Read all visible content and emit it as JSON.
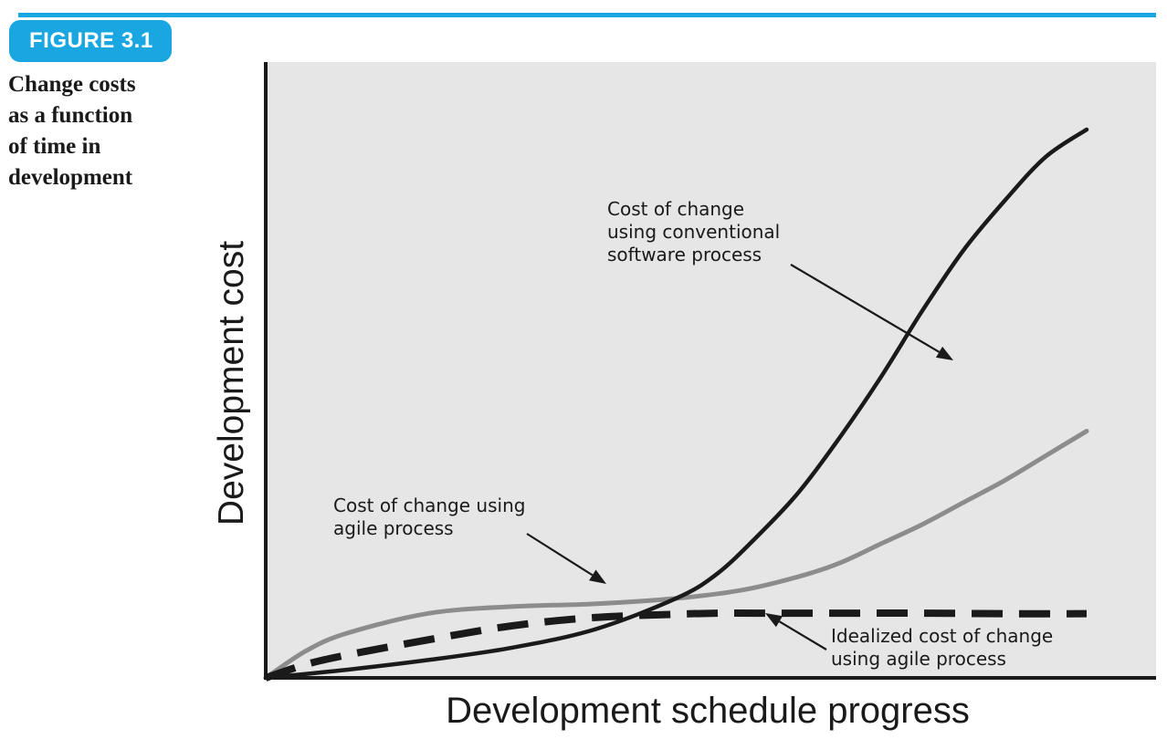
{
  "figure": {
    "label": "FIGURE 3.1",
    "caption_lines": [
      "Change costs",
      "as a function",
      "of time in",
      "development"
    ]
  },
  "colors": {
    "accent": "#1aa7e1",
    "plot_background": "#e6e6e6",
    "conventional": "#1a1a1a",
    "agile": "#8c8c8c",
    "idealized": "#1a1a1a"
  },
  "chart_data": {
    "type": "line",
    "xlabel": "Development schedule progress",
    "ylabel": "Development cost",
    "xlim": [
      0,
      100
    ],
    "ylim": [
      0,
      100
    ],
    "grid": false,
    "series": [
      {
        "name": "Cost of change using conventional software process",
        "style": "solid-black",
        "x": [
          0,
          10,
          20,
          30,
          40,
          50,
          55,
          60,
          65,
          70,
          75,
          80,
          85,
          90,
          95,
          100
        ],
        "y": [
          0,
          1.5,
          3.3,
          5.5,
          8.8,
          14.5,
          19,
          26,
          34,
          44,
          55,
          67,
          78,
          87,
          95,
          100
        ]
      },
      {
        "name": "Cost of change using agile process",
        "style": "solid-gray",
        "x": [
          0,
          5,
          10,
          20,
          30,
          40,
          50,
          58,
          65,
          70,
          75,
          80,
          85,
          90,
          95,
          100
        ],
        "y": [
          0,
          5,
          8.2,
          11.8,
          13,
          13.5,
          14.5,
          16,
          18.5,
          21,
          24.5,
          28,
          32,
          36,
          40.5,
          45
        ]
      },
      {
        "name": "Idealized cost of change using agile process",
        "style": "dashed-black",
        "x": [
          0,
          5,
          10,
          20,
          30,
          40,
          50,
          55,
          60,
          70,
          80,
          90,
          100
        ],
        "y": [
          0,
          2.5,
          4.2,
          7,
          9.5,
          11,
          11.6,
          11.8,
          11.8,
          11.8,
          11.8,
          11.7,
          11.7
        ]
      }
    ],
    "annotations": [
      {
        "lines": [
          "Cost of change",
          "using conventional",
          "software process"
        ],
        "series": "conventional"
      },
      {
        "lines": [
          "Cost of change using",
          "agile process"
        ],
        "series": "agile"
      },
      {
        "lines": [
          "Idealized cost of change",
          "using agile process"
        ],
        "series": "idealized"
      }
    ]
  }
}
